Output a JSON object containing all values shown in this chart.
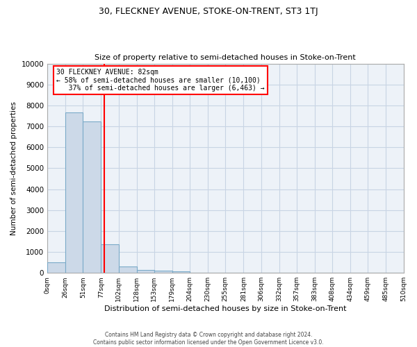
{
  "title1": "30, FLECKNEY AVENUE, STOKE-ON-TRENT, ST3 1TJ",
  "title2": "Size of property relative to semi-detached houses in Stoke-on-Trent",
  "xlabel": "Distribution of semi-detached houses by size in Stoke-on-Trent",
  "ylabel": "Number of semi-detached properties",
  "footer1": "Contains HM Land Registry data © Crown copyright and database right 2024.",
  "footer2": "Contains public sector information licensed under the Open Government Licence v3.0.",
  "bin_labels": [
    "0sqm",
    "26sqm",
    "51sqm",
    "77sqm",
    "102sqm",
    "128sqm",
    "153sqm",
    "179sqm",
    "204sqm",
    "230sqm",
    "255sqm",
    "281sqm",
    "306sqm",
    "332sqm",
    "357sqm",
    "383sqm",
    "408sqm",
    "434sqm",
    "459sqm",
    "485sqm",
    "510sqm"
  ],
  "bar_values": [
    500,
    7650,
    7250,
    1350,
    320,
    150,
    100,
    80,
    0,
    0,
    0,
    0,
    0,
    0,
    0,
    0,
    0,
    0,
    0,
    0
  ],
  "bar_color": "#ccd9e8",
  "bar_edge_color": "#7aaac8",
  "property_line_x": 82,
  "property_line_color": "red",
  "annotation_line1": "30 FLECKNEY AVENUE: 82sqm",
  "annotation_line2": "← 58% of semi-detached houses are smaller (10,100)",
  "annotation_line3": "   37% of semi-detached houses are larger (6,463) →",
  "annotation_box_color": "white",
  "annotation_box_edge_color": "red",
  "ylim": [
    0,
    10000
  ],
  "yticks": [
    0,
    1000,
    2000,
    3000,
    4000,
    5000,
    6000,
    7000,
    8000,
    9000,
    10000
  ],
  "grid_color": "#c8d4e4",
  "bg_color": "#edf2f8",
  "fig_bg_color": "#ffffff"
}
